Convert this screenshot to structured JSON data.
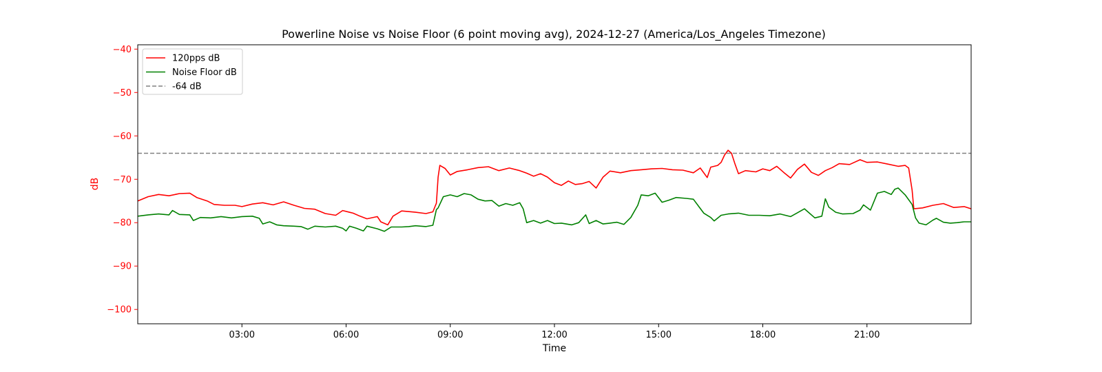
{
  "chart_data": {
    "type": "line",
    "title": "Powerline Noise vs Noise Floor (6 point moving avg), 2024-12-27 (America/Los_Angeles Timezone)",
    "xlabel": "Time",
    "ylabel": "dB",
    "x_unit": "hours since 00:00",
    "xlim": [
      0,
      24
    ],
    "ylim": [
      -103.3,
      -39
    ],
    "x_ticks": [
      3,
      6,
      9,
      12,
      15,
      18,
      21
    ],
    "x_tick_labels": [
      "03:00",
      "06:00",
      "09:00",
      "12:00",
      "15:00",
      "18:00",
      "21:00"
    ],
    "y_ticks": [
      -40,
      -50,
      -60,
      -70,
      -80,
      -90,
      -100
    ],
    "y_tick_labels": [
      "−40",
      "−50",
      "−60",
      "−70",
      "−80",
      "−90",
      "−100"
    ],
    "legend_position": "upper left",
    "grid": false,
    "series": [
      {
        "name": "120pps dB",
        "color": "#ff0000",
        "points": [
          [
            0,
            -75
          ],
          [
            0.3,
            -74
          ],
          [
            0.6,
            -73.5
          ],
          [
            0.9,
            -73.8
          ],
          [
            1.2,
            -73.3
          ],
          [
            1.5,
            -73.2
          ],
          [
            1.7,
            -74.2
          ],
          [
            2.0,
            -75.0
          ],
          [
            2.2,
            -75.8
          ],
          [
            2.5,
            -76.0
          ],
          [
            2.8,
            -76.0
          ],
          [
            3.0,
            -76.3
          ],
          [
            3.3,
            -75.7
          ],
          [
            3.6,
            -75.4
          ],
          [
            3.9,
            -75.9
          ],
          [
            4.2,
            -75.2
          ],
          [
            4.5,
            -76.0
          ],
          [
            4.8,
            -76.7
          ],
          [
            5.1,
            -76.9
          ],
          [
            5.4,
            -77.9
          ],
          [
            5.7,
            -78.3
          ],
          [
            5.9,
            -77.2
          ],
          [
            6.2,
            -77.8
          ],
          [
            6.4,
            -78.5
          ],
          [
            6.6,
            -79.1
          ],
          [
            6.9,
            -78.6
          ],
          [
            7.0,
            -79.8
          ],
          [
            7.2,
            -80.5
          ],
          [
            7.35,
            -78.5
          ],
          [
            7.6,
            -77.3
          ],
          [
            8.0,
            -77.6
          ],
          [
            8.3,
            -77.9
          ],
          [
            8.5,
            -77.5
          ],
          [
            8.6,
            -75.5
          ],
          [
            8.65,
            -69.5
          ],
          [
            8.7,
            -66.8
          ],
          [
            8.85,
            -67.5
          ],
          [
            9.0,
            -69.0
          ],
          [
            9.2,
            -68.2
          ],
          [
            9.5,
            -67.8
          ],
          [
            9.8,
            -67.3
          ],
          [
            10.1,
            -67.1
          ],
          [
            10.4,
            -68.0
          ],
          [
            10.7,
            -67.4
          ],
          [
            11.0,
            -68.0
          ],
          [
            11.2,
            -68.6
          ],
          [
            11.4,
            -69.3
          ],
          [
            11.6,
            -68.7
          ],
          [
            11.8,
            -69.5
          ],
          [
            12.0,
            -70.8
          ],
          [
            12.2,
            -71.4
          ],
          [
            12.4,
            -70.4
          ],
          [
            12.6,
            -71.2
          ],
          [
            12.8,
            -71.0
          ],
          [
            13.0,
            -70.5
          ],
          [
            13.2,
            -72.0
          ],
          [
            13.4,
            -69.5
          ],
          [
            13.6,
            -68.1
          ],
          [
            13.9,
            -68.5
          ],
          [
            14.2,
            -68.0
          ],
          [
            14.5,
            -67.8
          ],
          [
            14.8,
            -67.6
          ],
          [
            15.1,
            -67.5
          ],
          [
            15.4,
            -67.8
          ],
          [
            15.7,
            -67.9
          ],
          [
            16.0,
            -68.5
          ],
          [
            16.2,
            -67.4
          ],
          [
            16.4,
            -69.6
          ],
          [
            16.5,
            -67.2
          ],
          [
            16.7,
            -66.8
          ],
          [
            16.8,
            -66.1
          ],
          [
            16.9,
            -64.4
          ],
          [
            17.0,
            -63.3
          ],
          [
            17.1,
            -64.0
          ],
          [
            17.2,
            -66.5
          ],
          [
            17.3,
            -68.7
          ],
          [
            17.5,
            -68.0
          ],
          [
            17.8,
            -68.3
          ],
          [
            18.0,
            -67.6
          ],
          [
            18.2,
            -68.0
          ],
          [
            18.4,
            -67.0
          ],
          [
            18.6,
            -68.4
          ],
          [
            18.8,
            -69.7
          ],
          [
            19.0,
            -67.7
          ],
          [
            19.2,
            -66.5
          ],
          [
            19.4,
            -68.4
          ],
          [
            19.6,
            -69.1
          ],
          [
            19.8,
            -68.0
          ],
          [
            20.0,
            -67.3
          ],
          [
            20.2,
            -66.4
          ],
          [
            20.5,
            -66.6
          ],
          [
            20.8,
            -65.5
          ],
          [
            21.0,
            -66.1
          ],
          [
            21.3,
            -66.0
          ],
          [
            21.6,
            -66.5
          ],
          [
            21.9,
            -67.0
          ],
          [
            22.1,
            -66.8
          ],
          [
            22.2,
            -67.4
          ],
          [
            22.3,
            -72.5
          ],
          [
            22.35,
            -76.8
          ],
          [
            22.6,
            -76.6
          ],
          [
            22.9,
            -76.0
          ],
          [
            23.2,
            -75.6
          ],
          [
            23.5,
            -76.5
          ],
          [
            23.8,
            -76.3
          ],
          [
            24.0,
            -76.8
          ]
        ]
      },
      {
        "name": "Noise Floor dB",
        "color": "#008000",
        "points": [
          [
            0,
            -78.5
          ],
          [
            0.3,
            -78.2
          ],
          [
            0.6,
            -78.0
          ],
          [
            0.9,
            -78.2
          ],
          [
            1.0,
            -77.2
          ],
          [
            1.2,
            -78.1
          ],
          [
            1.5,
            -78.2
          ],
          [
            1.6,
            -79.5
          ],
          [
            1.8,
            -78.8
          ],
          [
            2.1,
            -78.9
          ],
          [
            2.4,
            -78.6
          ],
          [
            2.7,
            -78.9
          ],
          [
            3.0,
            -78.6
          ],
          [
            3.3,
            -78.5
          ],
          [
            3.5,
            -79.0
          ],
          [
            3.6,
            -80.3
          ],
          [
            3.8,
            -79.8
          ],
          [
            4.0,
            -80.5
          ],
          [
            4.2,
            -80.7
          ],
          [
            4.5,
            -80.8
          ],
          [
            4.7,
            -80.9
          ],
          [
            4.9,
            -81.5
          ],
          [
            5.1,
            -80.8
          ],
          [
            5.4,
            -81.0
          ],
          [
            5.7,
            -80.8
          ],
          [
            5.9,
            -81.3
          ],
          [
            6.0,
            -81.9
          ],
          [
            6.1,
            -80.8
          ],
          [
            6.3,
            -81.3
          ],
          [
            6.5,
            -81.9
          ],
          [
            6.6,
            -80.8
          ],
          [
            6.9,
            -81.4
          ],
          [
            7.1,
            -82.0
          ],
          [
            7.3,
            -81.0
          ],
          [
            7.6,
            -81.0
          ],
          [
            7.8,
            -80.9
          ],
          [
            8.0,
            -80.7
          ],
          [
            8.3,
            -80.9
          ],
          [
            8.5,
            -80.6
          ],
          [
            8.6,
            -77.0
          ],
          [
            8.65,
            -76.6
          ],
          [
            8.8,
            -74.0
          ],
          [
            9.0,
            -73.6
          ],
          [
            9.2,
            -74.0
          ],
          [
            9.4,
            -73.3
          ],
          [
            9.6,
            -73.6
          ],
          [
            9.8,
            -74.6
          ],
          [
            10.0,
            -75.0
          ],
          [
            10.2,
            -74.9
          ],
          [
            10.4,
            -76.2
          ],
          [
            10.6,
            -75.6
          ],
          [
            10.8,
            -76.0
          ],
          [
            11.0,
            -75.4
          ],
          [
            11.1,
            -76.8
          ],
          [
            11.2,
            -80.0
          ],
          [
            11.4,
            -79.5
          ],
          [
            11.6,
            -80.1
          ],
          [
            11.8,
            -79.5
          ],
          [
            12.0,
            -80.2
          ],
          [
            12.2,
            -80.1
          ],
          [
            12.5,
            -80.5
          ],
          [
            12.7,
            -80.0
          ],
          [
            12.9,
            -78.2
          ],
          [
            13.0,
            -80.2
          ],
          [
            13.2,
            -79.5
          ],
          [
            13.4,
            -80.3
          ],
          [
            13.6,
            -80.1
          ],
          [
            13.8,
            -79.9
          ],
          [
            14.0,
            -80.4
          ],
          [
            14.2,
            -78.8
          ],
          [
            14.4,
            -76.0
          ],
          [
            14.5,
            -73.6
          ],
          [
            14.7,
            -73.8
          ],
          [
            14.9,
            -73.2
          ],
          [
            15.1,
            -75.3
          ],
          [
            15.3,
            -74.8
          ],
          [
            15.5,
            -74.2
          ],
          [
            15.8,
            -74.4
          ],
          [
            16.0,
            -74.6
          ],
          [
            16.3,
            -77.8
          ],
          [
            16.5,
            -78.8
          ],
          [
            16.6,
            -79.6
          ],
          [
            16.8,
            -78.3
          ],
          [
            17.0,
            -78.0
          ],
          [
            17.3,
            -77.8
          ],
          [
            17.6,
            -78.3
          ],
          [
            17.9,
            -78.3
          ],
          [
            18.2,
            -78.4
          ],
          [
            18.5,
            -78.0
          ],
          [
            18.8,
            -78.6
          ],
          [
            19.0,
            -77.7
          ],
          [
            19.2,
            -76.8
          ],
          [
            19.3,
            -77.5
          ],
          [
            19.5,
            -78.9
          ],
          [
            19.7,
            -78.5
          ],
          [
            19.8,
            -74.5
          ],
          [
            19.9,
            -76.4
          ],
          [
            20.1,
            -77.6
          ],
          [
            20.3,
            -78.0
          ],
          [
            20.6,
            -77.9
          ],
          [
            20.8,
            -77.1
          ],
          [
            20.9,
            -75.9
          ],
          [
            21.1,
            -77.1
          ],
          [
            21.3,
            -73.2
          ],
          [
            21.5,
            -72.8
          ],
          [
            21.7,
            -73.5
          ],
          [
            21.8,
            -72.3
          ],
          [
            21.9,
            -72.0
          ],
          [
            22.1,
            -73.6
          ],
          [
            22.3,
            -75.8
          ],
          [
            22.4,
            -78.9
          ],
          [
            22.5,
            -80.1
          ],
          [
            22.7,
            -80.5
          ],
          [
            22.9,
            -79.4
          ],
          [
            23.0,
            -79.0
          ],
          [
            23.2,
            -79.9
          ],
          [
            23.4,
            -80.1
          ],
          [
            23.6,
            -80.0
          ],
          [
            23.8,
            -79.8
          ],
          [
            24.0,
            -79.8
          ]
        ]
      },
      {
        "name": "-64 dB",
        "color": "#808080",
        "line_style": "dashed",
        "points": [
          [
            0,
            -64
          ],
          [
            24,
            -64
          ]
        ]
      }
    ]
  }
}
